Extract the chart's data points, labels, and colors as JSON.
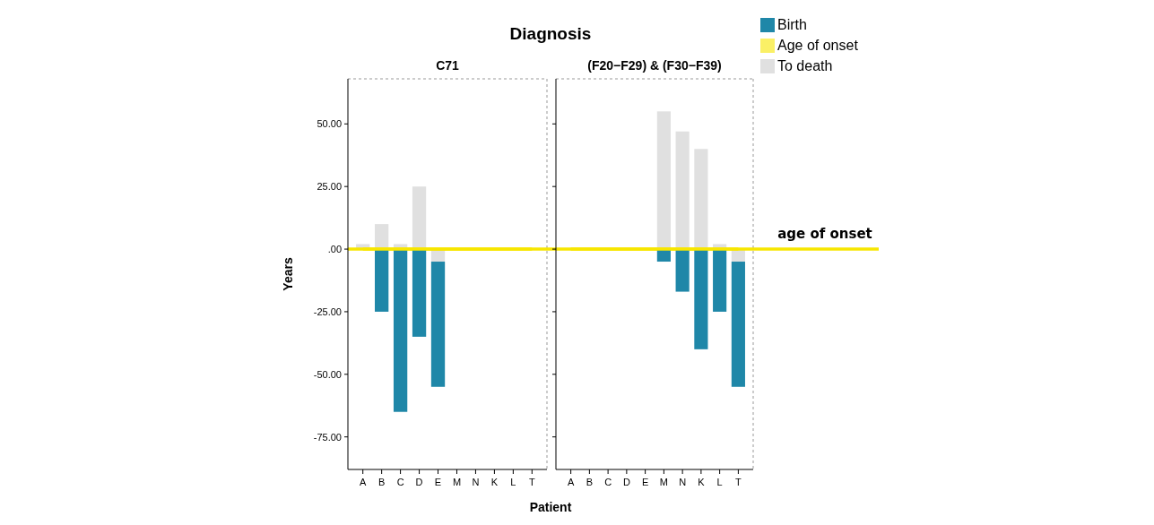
{
  "chart_data": [
    {
      "type": "bar",
      "title": "Diagnosis",
      "subtitle": "C71",
      "xlabel": "Patient",
      "ylabel": "Years",
      "categories": [
        "A",
        "B",
        "C",
        "D",
        "E",
        "M",
        "N",
        "K",
        "L",
        "T"
      ],
      "stacked": true,
      "ylim": [
        -88,
        68
      ],
      "yticks": [
        {
          "value": -75,
          "label": "-75.00"
        },
        {
          "value": -50,
          "label": "-50.00"
        },
        {
          "value": -25,
          "label": "-25.00"
        },
        {
          "value": 0,
          "label": ".00"
        },
        {
          "value": 25,
          "label": "25.00"
        },
        {
          "value": 50,
          "label": "50.00"
        }
      ],
      "ref_lines": [
        {
          "axis": "y",
          "value": 0,
          "color": "#f7e600"
        }
      ],
      "series": [
        {
          "color": "#e0e0e0",
          "values": [
            2,
            10,
            2,
            25,
            -5,
            null,
            null,
            null,
            null,
            null
          ]
        },
        {
          "type": "line",
          "color": "#f7e600",
          "values": [
            0,
            0,
            0,
            0,
            0,
            0,
            0,
            0,
            0,
            0
          ]
        },
        {
          "color": "#1f87a8",
          "values": [
            null,
            -25,
            -65,
            -35,
            -50,
            null,
            null,
            null,
            null,
            null
          ]
        }
      ]
    },
    {
      "type": "bar",
      "subtitle": "(F20−F29) & (F30−F39)",
      "categories": [
        "A",
        "B",
        "C",
        "D",
        "E",
        "M",
        "N",
        "K",
        "L",
        "T"
      ],
      "stacked": true,
      "tick_labels": "x",
      "legend": "top right",
      "ylim": [
        -88,
        68
      ],
      "yticks": [
        {
          "value": -75,
          "label": null
        },
        {
          "value": -50,
          "label": null
        },
        {
          "value": -25,
          "label": null
        },
        {
          "value": 0,
          "label": null
        },
        {
          "value": 25,
          "label": null
        },
        {
          "value": 50,
          "label": null
        }
      ],
      "ref_lines": [
        {
          "axis": "y",
          "value": 0,
          "label": "age of onset",
          "color": "#f7e600"
        }
      ],
      "series": [
        {
          "name": "To death",
          "color": "#e0e0e0",
          "values": [
            null,
            null,
            null,
            null,
            null,
            55,
            47,
            40,
            2,
            -5
          ]
        },
        {
          "name": "Age of onset",
          "type": "line",
          "color": "#f7e600",
          "values": [
            0,
            0,
            0,
            0,
            0,
            0,
            0,
            0,
            0,
            0
          ]
        },
        {
          "name": "Birth",
          "color": "#1f87a8",
          "values": [
            null,
            null,
            null,
            null,
            null,
            -5,
            -17,
            -40,
            -25,
            -50
          ]
        }
      ]
    }
  ]
}
